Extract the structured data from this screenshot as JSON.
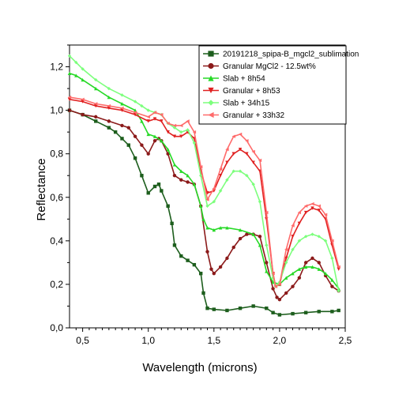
{
  "chart_data": {
    "type": "line",
    "xlabel": "Wavelength (microns)",
    "ylabel": "Reflectance",
    "xlim": [
      0.4,
      2.5
    ],
    "ylim": [
      0.0,
      1.3
    ],
    "x_ticks": [
      "0,5",
      "1,0",
      "1,5",
      "2,0",
      "2,5"
    ],
    "x_tick_values": [
      0.5,
      1.0,
      1.5,
      2.0,
      2.5
    ],
    "y_ticks": [
      "0,0",
      "0,2",
      "0,4",
      "0,6",
      "0,8",
      "1,0",
      "1,2"
    ],
    "y_tick_values": [
      0.0,
      0.2,
      0.4,
      0.6,
      0.8,
      1.0,
      1.2
    ],
    "grid": false,
    "legend_position": "top-right",
    "series": [
      {
        "name": "20191218_spipa-B_mgcl2_sublimation",
        "color": "#1d5e1d",
        "marker": "square",
        "points": [
          [
            0.4,
            1.0
          ],
          [
            0.5,
            0.98
          ],
          [
            0.6,
            0.95
          ],
          [
            0.7,
            0.92
          ],
          [
            0.75,
            0.9
          ],
          [
            0.8,
            0.87
          ],
          [
            0.85,
            0.84
          ],
          [
            0.9,
            0.78
          ],
          [
            0.95,
            0.7
          ],
          [
            1.0,
            0.62
          ],
          [
            1.05,
            0.65
          ],
          [
            1.08,
            0.66
          ],
          [
            1.1,
            0.63
          ],
          [
            1.15,
            0.56
          ],
          [
            1.18,
            0.48
          ],
          [
            1.2,
            0.38
          ],
          [
            1.25,
            0.33
          ],
          [
            1.3,
            0.31
          ],
          [
            1.35,
            0.29
          ],
          [
            1.4,
            0.25
          ],
          [
            1.42,
            0.16
          ],
          [
            1.45,
            0.09
          ],
          [
            1.5,
            0.085
          ],
          [
            1.6,
            0.08
          ],
          [
            1.7,
            0.09
          ],
          [
            1.8,
            0.1
          ],
          [
            1.9,
            0.09
          ],
          [
            1.95,
            0.07
          ],
          [
            2.0,
            0.06
          ],
          [
            2.1,
            0.065
          ],
          [
            2.2,
            0.07
          ],
          [
            2.3,
            0.075
          ],
          [
            2.4,
            0.075
          ],
          [
            2.45,
            0.08
          ]
        ]
      },
      {
        "name": "Granular MgCl2 - 12.5wt%",
        "color": "#8b1a1a",
        "marker": "circle",
        "points": [
          [
            0.4,
            1.0
          ],
          [
            0.5,
            0.98
          ],
          [
            0.6,
            0.97
          ],
          [
            0.7,
            0.95
          ],
          [
            0.8,
            0.93
          ],
          [
            0.85,
            0.92
          ],
          [
            0.9,
            0.88
          ],
          [
            0.95,
            0.84
          ],
          [
            1.0,
            0.8
          ],
          [
            1.05,
            0.86
          ],
          [
            1.08,
            0.87
          ],
          [
            1.1,
            0.86
          ],
          [
            1.15,
            0.8
          ],
          [
            1.2,
            0.7
          ],
          [
            1.25,
            0.68
          ],
          [
            1.3,
            0.67
          ],
          [
            1.35,
            0.66
          ],
          [
            1.4,
            0.56
          ],
          [
            1.45,
            0.35
          ],
          [
            1.48,
            0.27
          ],
          [
            1.5,
            0.25
          ],
          [
            1.55,
            0.28
          ],
          [
            1.6,
            0.32
          ],
          [
            1.65,
            0.37
          ],
          [
            1.7,
            0.41
          ],
          [
            1.75,
            0.43
          ],
          [
            1.8,
            0.43
          ],
          [
            1.85,
            0.42
          ],
          [
            1.9,
            0.3
          ],
          [
            1.95,
            0.18
          ],
          [
            1.98,
            0.14
          ],
          [
            2.0,
            0.13
          ],
          [
            2.05,
            0.16
          ],
          [
            2.1,
            0.19
          ],
          [
            2.15,
            0.23
          ],
          [
            2.2,
            0.3
          ],
          [
            2.25,
            0.32
          ],
          [
            2.3,
            0.3
          ],
          [
            2.35,
            0.24
          ],
          [
            2.4,
            0.19
          ],
          [
            2.45,
            0.17
          ]
        ]
      },
      {
        "name": "Slab + 8h54",
        "color": "#26d926",
        "marker": "triangle-up",
        "points": [
          [
            0.4,
            1.17
          ],
          [
            0.45,
            1.16
          ],
          [
            0.5,
            1.14
          ],
          [
            0.6,
            1.1
          ],
          [
            0.7,
            1.06
          ],
          [
            0.8,
            1.03
          ],
          [
            0.9,
            1.0
          ],
          [
            0.95,
            0.95
          ],
          [
            1.0,
            0.89
          ],
          [
            1.05,
            0.88
          ],
          [
            1.1,
            0.86
          ],
          [
            1.15,
            0.82
          ],
          [
            1.2,
            0.75
          ],
          [
            1.25,
            0.72
          ],
          [
            1.3,
            0.7
          ],
          [
            1.35,
            0.66
          ],
          [
            1.4,
            0.56
          ],
          [
            1.42,
            0.5
          ],
          [
            1.45,
            0.46
          ],
          [
            1.5,
            0.45
          ],
          [
            1.55,
            0.46
          ],
          [
            1.6,
            0.46
          ],
          [
            1.7,
            0.45
          ],
          [
            1.8,
            0.43
          ],
          [
            1.85,
            0.38
          ],
          [
            1.9,
            0.26
          ],
          [
            1.95,
            0.21
          ],
          [
            2.0,
            0.2
          ],
          [
            2.05,
            0.23
          ],
          [
            2.1,
            0.25
          ],
          [
            2.15,
            0.27
          ],
          [
            2.2,
            0.28
          ],
          [
            2.25,
            0.28
          ],
          [
            2.3,
            0.27
          ],
          [
            2.35,
            0.25
          ],
          [
            2.4,
            0.22
          ],
          [
            2.45,
            0.18
          ]
        ]
      },
      {
        "name": "Granular + 8h53",
        "color": "#e02020",
        "marker": "triangle-down",
        "points": [
          [
            0.4,
            1.05
          ],
          [
            0.5,
            1.04
          ],
          [
            0.6,
            1.02
          ],
          [
            0.7,
            1.01
          ],
          [
            0.8,
            1.0
          ],
          [
            0.9,
            0.98
          ],
          [
            1.0,
            0.95
          ],
          [
            1.05,
            0.96
          ],
          [
            1.1,
            0.95
          ],
          [
            1.15,
            0.9
          ],
          [
            1.2,
            0.88
          ],
          [
            1.25,
            0.88
          ],
          [
            1.3,
            0.9
          ],
          [
            1.35,
            0.87
          ],
          [
            1.4,
            0.72
          ],
          [
            1.45,
            0.62
          ],
          [
            1.5,
            0.63
          ],
          [
            1.55,
            0.7
          ],
          [
            1.6,
            0.76
          ],
          [
            1.65,
            0.8
          ],
          [
            1.7,
            0.82
          ],
          [
            1.75,
            0.8
          ],
          [
            1.8,
            0.76
          ],
          [
            1.85,
            0.72
          ],
          [
            1.9,
            0.5
          ],
          [
            1.95,
            0.25
          ],
          [
            1.97,
            0.19
          ],
          [
            2.0,
            0.2
          ],
          [
            2.05,
            0.32
          ],
          [
            2.1,
            0.42
          ],
          [
            2.15,
            0.48
          ],
          [
            2.2,
            0.53
          ],
          [
            2.25,
            0.55
          ],
          [
            2.3,
            0.54
          ],
          [
            2.35,
            0.5
          ],
          [
            2.4,
            0.38
          ],
          [
            2.45,
            0.27
          ]
        ]
      },
      {
        "name": "Slab + 34h15",
        "color": "#7dff7d",
        "marker": "diamond",
        "points": [
          [
            0.4,
            1.25
          ],
          [
            0.45,
            1.22
          ],
          [
            0.5,
            1.19
          ],
          [
            0.6,
            1.14
          ],
          [
            0.7,
            1.1
          ],
          [
            0.8,
            1.07
          ],
          [
            0.9,
            1.04
          ],
          [
            0.95,
            1.02
          ],
          [
            1.0,
            1.0
          ],
          [
            1.05,
            0.99
          ],
          [
            1.1,
            0.98
          ],
          [
            1.15,
            0.94
          ],
          [
            1.2,
            0.92
          ],
          [
            1.25,
            0.9
          ],
          [
            1.3,
            0.91
          ],
          [
            1.35,
            0.85
          ],
          [
            1.4,
            0.7
          ],
          [
            1.45,
            0.56
          ],
          [
            1.5,
            0.58
          ],
          [
            1.55,
            0.63
          ],
          [
            1.6,
            0.68
          ],
          [
            1.65,
            0.72
          ],
          [
            1.7,
            0.72
          ],
          [
            1.75,
            0.7
          ],
          [
            1.8,
            0.66
          ],
          [
            1.85,
            0.58
          ],
          [
            1.9,
            0.38
          ],
          [
            1.95,
            0.23
          ],
          [
            1.97,
            0.19
          ],
          [
            2.0,
            0.21
          ],
          [
            2.05,
            0.3
          ],
          [
            2.1,
            0.36
          ],
          [
            2.15,
            0.4
          ],
          [
            2.2,
            0.42
          ],
          [
            2.25,
            0.43
          ],
          [
            2.3,
            0.42
          ],
          [
            2.35,
            0.4
          ],
          [
            2.4,
            0.32
          ],
          [
            2.45,
            0.17
          ]
        ]
      },
      {
        "name": "Granular + 33h32",
        "color": "#ff6b6b",
        "marker": "triangle-left",
        "points": [
          [
            0.4,
            1.06
          ],
          [
            0.5,
            1.05
          ],
          [
            0.6,
            1.03
          ],
          [
            0.7,
            1.02
          ],
          [
            0.8,
            1.01
          ],
          [
            0.9,
            0.99
          ],
          [
            1.0,
            0.97
          ],
          [
            1.05,
            0.99
          ],
          [
            1.1,
            0.98
          ],
          [
            1.15,
            0.94
          ],
          [
            1.2,
            0.93
          ],
          [
            1.25,
            0.93
          ],
          [
            1.3,
            0.95
          ],
          [
            1.35,
            0.9
          ],
          [
            1.4,
            0.74
          ],
          [
            1.45,
            0.59
          ],
          [
            1.5,
            0.64
          ],
          [
            1.55,
            0.73
          ],
          [
            1.6,
            0.82
          ],
          [
            1.65,
            0.88
          ],
          [
            1.7,
            0.89
          ],
          [
            1.75,
            0.86
          ],
          [
            1.8,
            0.81
          ],
          [
            1.85,
            0.77
          ],
          [
            1.9,
            0.53
          ],
          [
            1.95,
            0.25
          ],
          [
            1.97,
            0.19
          ],
          [
            2.0,
            0.2
          ],
          [
            2.05,
            0.36
          ],
          [
            2.1,
            0.47
          ],
          [
            2.15,
            0.53
          ],
          [
            2.2,
            0.56
          ],
          [
            2.25,
            0.57
          ],
          [
            2.3,
            0.56
          ],
          [
            2.35,
            0.52
          ],
          [
            2.4,
            0.4
          ],
          [
            2.45,
            0.28
          ]
        ]
      }
    ]
  }
}
